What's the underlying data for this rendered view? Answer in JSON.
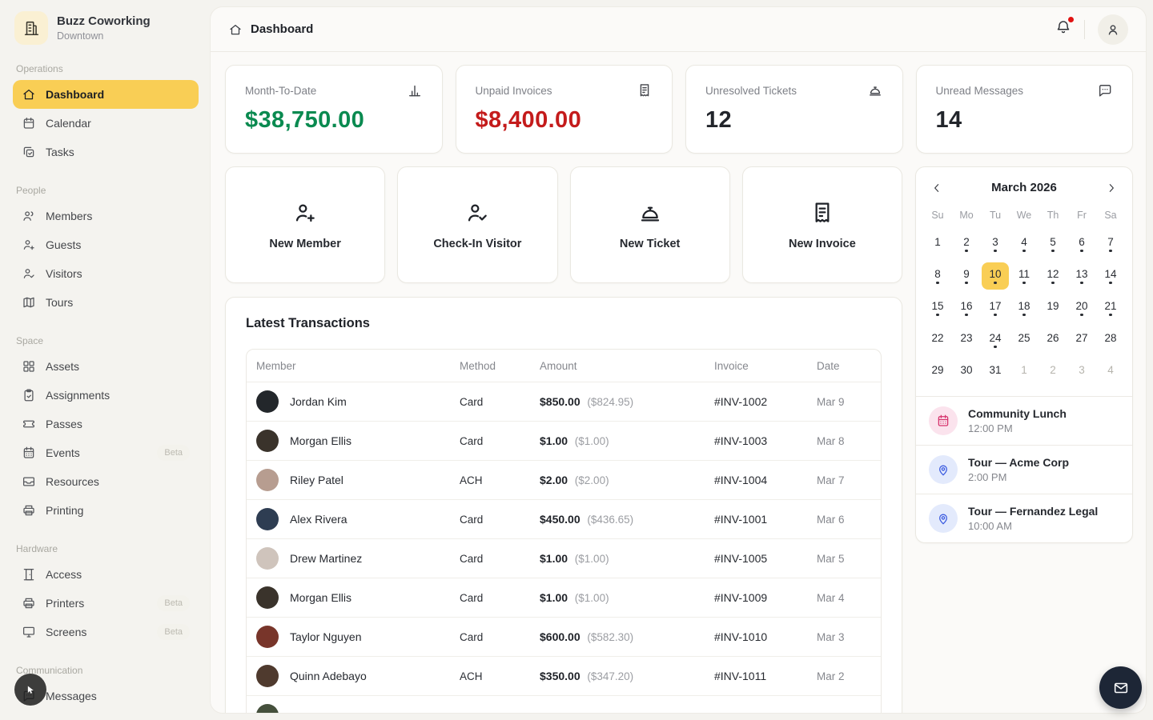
{
  "brand": {
    "name": "Buzz Coworking",
    "location": "Downtown"
  },
  "sidebar": {
    "sections": [
      {
        "label": "Operations",
        "items": [
          {
            "label": "Dashboard",
            "icon": "home",
            "active": true
          },
          {
            "label": "Calendar",
            "icon": "calendar"
          },
          {
            "label": "Tasks",
            "icon": "tasks"
          }
        ]
      },
      {
        "label": "People",
        "items": [
          {
            "label": "Members",
            "icon": "users"
          },
          {
            "label": "Guests",
            "icon": "user-plus"
          },
          {
            "label": "Visitors",
            "icon": "user-check"
          },
          {
            "label": "Tours",
            "icon": "map"
          }
        ]
      },
      {
        "label": "Space",
        "items": [
          {
            "label": "Assets",
            "icon": "grid"
          },
          {
            "label": "Assignments",
            "icon": "clipboard-check"
          },
          {
            "label": "Passes",
            "icon": "ticket"
          },
          {
            "label": "Events",
            "icon": "calendar-dots",
            "badge": "Beta"
          },
          {
            "label": "Resources",
            "icon": "inbox"
          },
          {
            "label": "Printing",
            "icon": "printer"
          }
        ]
      },
      {
        "label": "Hardware",
        "items": [
          {
            "label": "Access",
            "icon": "door"
          },
          {
            "label": "Printers",
            "icon": "printer",
            "badge": "Beta"
          },
          {
            "label": "Screens",
            "icon": "monitor",
            "badge": "Beta"
          }
        ]
      },
      {
        "label": "Communication",
        "items": [
          {
            "label": "Messages",
            "icon": "chat"
          }
        ]
      }
    ]
  },
  "topbar": {
    "title": "Dashboard"
  },
  "stats": [
    {
      "label": "Month-To-Date",
      "value": "$38,750.00",
      "color": "#0a8a50",
      "icon": "bar-chart"
    },
    {
      "label": "Unpaid Invoices",
      "value": "$8,400.00",
      "color": "#c41b1b",
      "icon": "receipt"
    },
    {
      "label": "Unresolved Tickets",
      "value": "12",
      "color": "#22252b",
      "icon": "service-bell"
    },
    {
      "label": "Unread Messages",
      "value": "14",
      "color": "#22252b",
      "icon": "chat"
    }
  ],
  "actions": [
    {
      "label": "New Member",
      "icon": "user-plus"
    },
    {
      "label": "Check-In Visitor",
      "icon": "user-check"
    },
    {
      "label": "New Ticket",
      "icon": "service-bell"
    },
    {
      "label": "New Invoice",
      "icon": "receipt"
    }
  ],
  "transactions": {
    "title": "Latest Transactions",
    "columns": [
      "Member",
      "Method",
      "Amount",
      "Invoice",
      "Date"
    ],
    "rows": [
      {
        "name": "Jordan Kim",
        "method": "Card",
        "amount": "$850.00",
        "net": "($824.95)",
        "invoice": "#INV-1002",
        "date": "Mar 9",
        "avatar_color": "#23272b"
      },
      {
        "name": "Morgan Ellis",
        "method": "Card",
        "amount": "$1.00",
        "net": "($1.00)",
        "invoice": "#INV-1003",
        "date": "Mar 8",
        "avatar_color": "#3a332b"
      },
      {
        "name": "Riley Patel",
        "method": "ACH",
        "amount": "$2.00",
        "net": "($2.00)",
        "invoice": "#INV-1004",
        "date": "Mar 7",
        "avatar_color": "#b79d90"
      },
      {
        "name": "Alex Rivera",
        "method": "Card",
        "amount": "$450.00",
        "net": "($436.65)",
        "invoice": "#INV-1001",
        "date": "Mar 6",
        "avatar_color": "#2e3d52"
      },
      {
        "name": "Drew Martinez",
        "method": "Card",
        "amount": "$1.00",
        "net": "($1.00)",
        "invoice": "#INV-1005",
        "date": "Mar 5",
        "avatar_color": "#cfc4bc"
      },
      {
        "name": "Morgan Ellis",
        "method": "Card",
        "amount": "$1.00",
        "net": "($1.00)",
        "invoice": "#INV-1009",
        "date": "Mar 4",
        "avatar_color": "#3a332b"
      },
      {
        "name": "Taylor Nguyen",
        "method": "Card",
        "amount": "$600.00",
        "net": "($582.30)",
        "invoice": "#INV-1010",
        "date": "Mar 3",
        "avatar_color": "#78352a"
      },
      {
        "name": "Quinn Adebayo",
        "method": "ACH",
        "amount": "$350.00",
        "net": "($347.20)",
        "invoice": "#INV-1011",
        "date": "Mar 2",
        "avatar_color": "#4f3a2e"
      },
      {
        "name": "",
        "method": "",
        "amount": "",
        "net": "",
        "invoice": "",
        "date": "",
        "avatar_color": "#45503c",
        "partial": true
      }
    ]
  },
  "calendar": {
    "month_label": "March 2026",
    "day_headers": [
      "Su",
      "Mo",
      "Tu",
      "We",
      "Th",
      "Fr",
      "Sa"
    ],
    "selected_day": 10,
    "dot_days": [
      2,
      3,
      4,
      5,
      6,
      7,
      8,
      9,
      10,
      11,
      12,
      13,
      14,
      15,
      16,
      17,
      18,
      20,
      21,
      24
    ],
    "days_in_month": 31,
    "trailing_days": [
      1,
      2,
      3,
      4
    ],
    "highlight_color": "#f9ce55"
  },
  "events": [
    {
      "title": "Community Lunch",
      "time": "12:00 PM",
      "icon": "calendar-dots",
      "color": "#d6336c",
      "bg": "#fbe3ed"
    },
    {
      "title": "Tour — Acme Corp",
      "time": "2:00 PM",
      "icon": "pin",
      "color": "#3c5ce0",
      "bg": "#e3eafc"
    },
    {
      "title": "Tour — Fernandez Legal",
      "time": "10:00 AM",
      "icon": "pin",
      "color": "#3c5ce0",
      "bg": "#e3eafc"
    }
  ],
  "fab": {
    "icon": "mail"
  }
}
